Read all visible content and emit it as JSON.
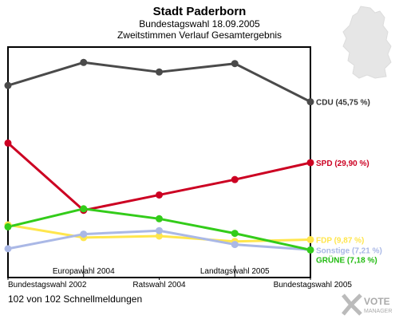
{
  "header": {
    "title": "Stadt Paderborn",
    "subtitle": "Bundestagswahl 18.09.2005",
    "subtitle2": "Zweitstimmen Verlauf Gesamtergebnis"
  },
  "footer": {
    "text": "102 von 102 Schnellmeldungen"
  },
  "logo": {
    "line1": "VOTE",
    "line2": "MANAGER"
  },
  "chart_data": {
    "type": "line",
    "categories": [
      "Bundestagswahl 2002",
      "Europawahl 2004",
      "Ratswahl 2004",
      "Landtagswahl 2005",
      "Bundestagswahl 2005"
    ],
    "category_rows": [
      "bottom",
      "top",
      "bottom",
      "top",
      "bottom"
    ],
    "ylim": [
      0,
      60
    ],
    "grid": false,
    "series": [
      {
        "name": "CDU",
        "label": "CDU (45,75 %)",
        "color": "#4a4a4a",
        "label_color": "#333333",
        "values": [
          50.0,
          56.0,
          53.5,
          55.7,
          45.75
        ]
      },
      {
        "name": "SPD",
        "label": "SPD (29,90 %)",
        "color": "#cc0022",
        "label_color": "#cc0022",
        "values": [
          35.0,
          17.5,
          21.5,
          25.5,
          29.9
        ]
      },
      {
        "name": "FDP",
        "label": "FDP (9,87 %)",
        "color": "#ffe64d",
        "label_color": "#ffe64d",
        "values": [
          13.7,
          10.4,
          10.8,
          9.4,
          9.87
        ]
      },
      {
        "name": "Sonstige",
        "label": "Sonstige (7,21 %)",
        "color": "#aab8e6",
        "label_color": "#aab8e6",
        "values": [
          7.5,
          11.3,
          12.2,
          8.6,
          7.21
        ]
      },
      {
        "name": "GRÜNE",
        "label": "GRÜNE (7,18 %)",
        "color": "#33cc1a",
        "label_color": "#22bb11",
        "values": [
          13.2,
          17.9,
          15.3,
          11.5,
          7.18
        ]
      }
    ]
  }
}
